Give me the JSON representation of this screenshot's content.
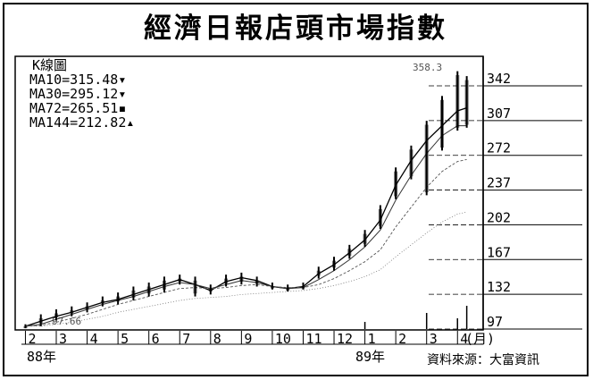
{
  "chart_data": {
    "type": "line",
    "title": "經濟日報店頭市場指數",
    "subtitle": "K線圖",
    "legend": [
      {
        "name": "MA10=315.48",
        "marker": "▾"
      },
      {
        "name": "MA30=295.12",
        "marker": "▾"
      },
      {
        "name": "MA72=265.51",
        "marker": "▪"
      },
      {
        "name": "MA144=212.82",
        "marker": "▴"
      }
    ],
    "high_annotation": "358.3",
    "low_annotation": "97.66",
    "y_ticks": [
      "342",
      "307",
      "272",
      "237",
      "202",
      "167",
      "132",
      "97"
    ],
    "ylim": [
      97,
      342
    ],
    "x_ticks": [
      "2",
      "3",
      "4",
      "5",
      "6",
      "7",
      "8",
      "9",
      "10",
      "11",
      "12",
      "1",
      "2",
      "3",
      "4"
    ],
    "x_unit": "(月)",
    "year_labels": [
      "88年",
      "89年"
    ],
    "source": "資料來源：大富資訊",
    "x": [
      2.0,
      2.5,
      3.0,
      3.5,
      4.0,
      4.5,
      5.0,
      5.5,
      6.0,
      6.5,
      7.0,
      7.5,
      8.0,
      8.5,
      9.0,
      9.5,
      10.0,
      10.5,
      11.0,
      11.5,
      12.0,
      12.5,
      13.0,
      13.5,
      14.0,
      14.5,
      15.0,
      15.5,
      16.0,
      16.3
    ],
    "series": [
      {
        "values": [
          98,
          103,
          108,
          112,
          117,
          122,
          125,
          130,
          135,
          140,
          145,
          140,
          134,
          143,
          147,
          144,
          138,
          136,
          138,
          151,
          160,
          172,
          185,
          205,
          240,
          265,
          285,
          300,
          315,
          318
        ]
      },
      {
        "values": [
          98,
          100,
          105,
          110,
          115,
          120,
          124,
          128,
          133,
          138,
          142,
          140,
          136,
          140,
          144,
          142,
          138,
          136,
          137,
          145,
          154,
          165,
          178,
          195,
          225,
          250,
          272,
          290,
          300,
          300
        ]
      },
      {
        "values": [
          98,
          99,
          102,
          106,
          110,
          115,
          120,
          124,
          128,
          132,
          136,
          137,
          136,
          137,
          139,
          140,
          138,
          137,
          137,
          140,
          146,
          154,
          163,
          175,
          198,
          218,
          238,
          254,
          264,
          266
        ]
      },
      {
        "values": [
          98,
          98,
          100,
          102,
          105,
          108,
          112,
          115,
          118,
          121,
          124,
          126,
          127,
          128,
          130,
          131,
          132,
          133,
          134,
          136,
          139,
          143,
          148,
          155,
          168,
          180,
          192,
          203,
          211,
          213
        ]
      }
    ],
    "highs": [
      100,
      110,
      115,
      118,
      122,
      128,
      132,
      138,
      142,
      148,
      150,
      148,
      140,
      150,
      152,
      148,
      142,
      140,
      142,
      158,
      168,
      180,
      195,
      220,
      258,
      280,
      305,
      330,
      355,
      350
    ],
    "lows": [
      96,
      98,
      104,
      108,
      112,
      118,
      120,
      124,
      128,
      132,
      140,
      128,
      130,
      138,
      140,
      138,
      135,
      133,
      135,
      146,
      154,
      166,
      178,
      196,
      226,
      246,
      230,
      275,
      295,
      298
    ],
    "volume": [
      0,
      0,
      0,
      0,
      0,
      0,
      0,
      0,
      0,
      0,
      0,
      0,
      0,
      0,
      0,
      0,
      0,
      0,
      0,
      0,
      0,
      0,
      8,
      0,
      0,
      0,
      18,
      0,
      12,
      26
    ]
  }
}
